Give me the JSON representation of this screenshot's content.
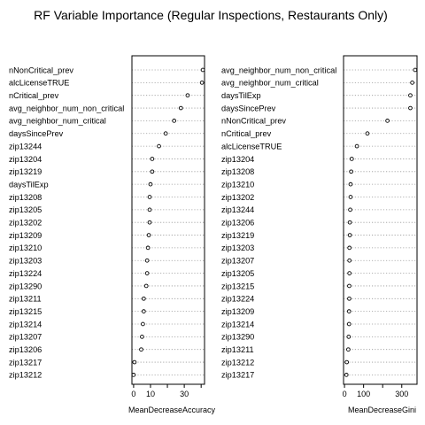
{
  "title": "RF Variable Importance (Regular Inspections, Restaurants Only)",
  "chart_data": [
    {
      "type": "scatter",
      "xlabel": "MeanDecreaseAccuracy",
      "xlim": [
        -1,
        42
      ],
      "xticks": [
        0,
        10,
        30
      ],
      "tick_labels": [
        "0",
        "10",
        "30"
      ],
      "minor_ticks": [
        20,
        40
      ],
      "grid": "dotted guide per row",
      "points": [
        {
          "label": "nNonCritical_prev",
          "value": 41
        },
        {
          "label": "alcLicenseTRUE",
          "value": 40.5
        },
        {
          "label": "nCritical_prev",
          "value": 32
        },
        {
          "label": "avg_neighbor_num_non_critical",
          "value": 28
        },
        {
          "label": "avg_neighbor_num_critical",
          "value": 24
        },
        {
          "label": "daysSincePrev",
          "value": 19
        },
        {
          "label": "zip13244",
          "value": 15
        },
        {
          "label": "zip13204",
          "value": 11
        },
        {
          "label": "zip13219",
          "value": 11
        },
        {
          "label": "daysTilExp",
          "value": 10
        },
        {
          "label": "zip13208",
          "value": 9.5
        },
        {
          "label": "zip13205",
          "value": 9.5
        },
        {
          "label": "zip13202",
          "value": 9.5
        },
        {
          "label": "zip13209",
          "value": 9
        },
        {
          "label": "zip13210",
          "value": 8.5
        },
        {
          "label": "zip13203",
          "value": 8
        },
        {
          "label": "zip13224",
          "value": 8
        },
        {
          "label": "zip13290",
          "value": 7.5
        },
        {
          "label": "zip13211",
          "value": 6
        },
        {
          "label": "zip13215",
          "value": 6
        },
        {
          "label": "zip13214",
          "value": 5.5
        },
        {
          "label": "zip13207",
          "value": 5
        },
        {
          "label": "zip13206",
          "value": 4.5
        },
        {
          "label": "zip13217",
          "value": 0.5
        },
        {
          "label": "zip13212",
          "value": 0
        }
      ]
    },
    {
      "type": "scatter",
      "xlabel": "MeanDecreaseGini",
      "xlim": [
        -5,
        380
      ],
      "xticks": [
        0,
        100,
        300
      ],
      "tick_labels": [
        "0",
        "100",
        "300"
      ],
      "minor_ticks": [
        200
      ],
      "grid": "dotted guide per row",
      "points": [
        {
          "label": "avg_neighbor_num_non_critical",
          "value": 370
        },
        {
          "label": "avg_neighbor_num_critical",
          "value": 355
        },
        {
          "label": "daysTilExp",
          "value": 345
        },
        {
          "label": "daysSincePrev",
          "value": 345
        },
        {
          "label": "nNonCritical_prev",
          "value": 225
        },
        {
          "label": "nCritical_prev",
          "value": 120
        },
        {
          "label": "alcLicenseTRUE",
          "value": 65
        },
        {
          "label": "zip13204",
          "value": 38
        },
        {
          "label": "zip13208",
          "value": 35
        },
        {
          "label": "zip13210",
          "value": 32
        },
        {
          "label": "zip13202",
          "value": 32
        },
        {
          "label": "zip13244",
          "value": 30
        },
        {
          "label": "zip13206",
          "value": 28
        },
        {
          "label": "zip13219",
          "value": 28
        },
        {
          "label": "zip13203",
          "value": 26
        },
        {
          "label": "zip13207",
          "value": 26
        },
        {
          "label": "zip13205",
          "value": 26
        },
        {
          "label": "zip13215",
          "value": 25
        },
        {
          "label": "zip13224",
          "value": 25
        },
        {
          "label": "zip13209",
          "value": 24
        },
        {
          "label": "zip13214",
          "value": 24
        },
        {
          "label": "zip13290",
          "value": 22
        },
        {
          "label": "zip13211",
          "value": 20
        },
        {
          "label": "zip13212",
          "value": 12
        },
        {
          "label": "zip13217",
          "value": 10
        }
      ]
    }
  ]
}
